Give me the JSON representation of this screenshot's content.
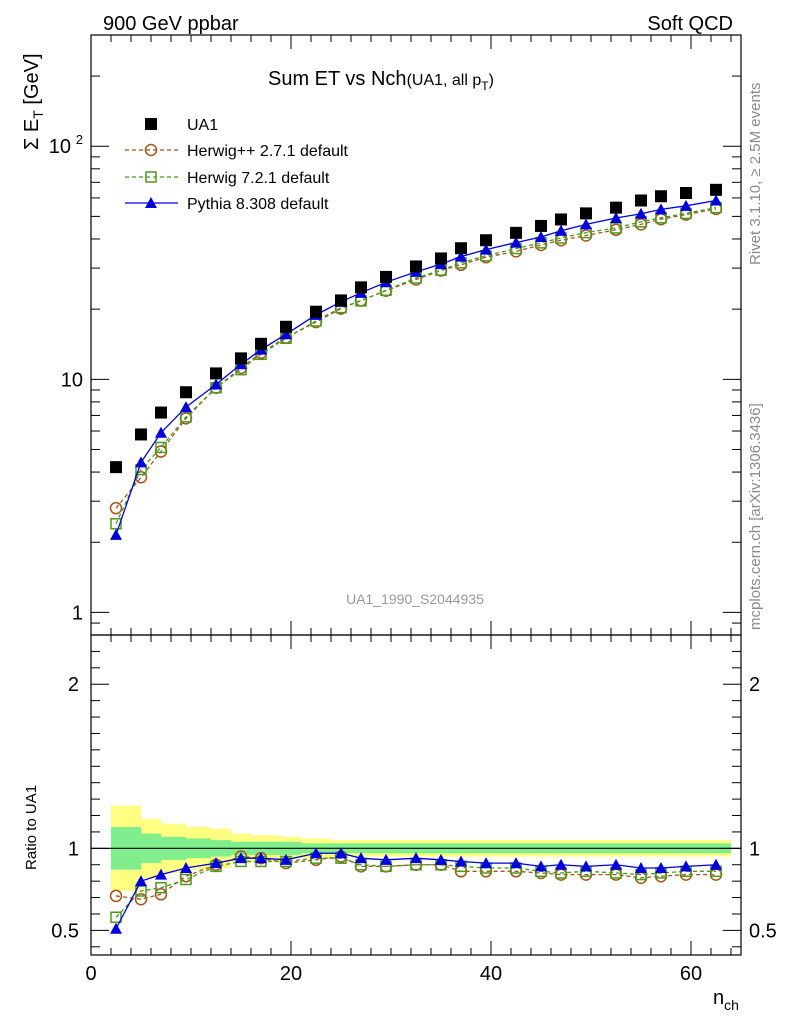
{
  "header": {
    "left": "900 GeV ppbar",
    "right": "Soft QCD"
  },
  "side_labels": {
    "rivet": "Rivet 3.1.10, ≥ 2.5M events",
    "mcplots": "mcplots.cern.ch [arXiv:1306.3436]"
  },
  "chart_data": {
    "type": "scatter",
    "title": "Sum ET vs Nch",
    "title_suffix": "(UA1, all p",
    "title_suffix_sub": "T",
    "title_suffix_end": ")",
    "watermark": "UA1_1990_S2044935",
    "ylabel_main": "Σ E",
    "ylabel_main_sub": "T",
    "ylabel_main_unit": " [GeV]",
    "ylabel_ratio": "Ratio to UA1",
    "xlabel": "n",
    "xlabel_sub": "ch",
    "main_yscale": "log",
    "main_ylim": [
      0.8,
      300
    ],
    "ratio_ylim": [
      0.35,
      2.3
    ],
    "xlim": [
      0,
      65
    ],
    "x_ticks": [
      "0",
      "20",
      "40",
      "60"
    ],
    "x_tick_values": [
      0,
      20,
      40,
      60
    ],
    "main_y_ticks": [
      {
        "value": 1,
        "label": "1"
      },
      {
        "value": 10,
        "label": "10"
      },
      {
        "value": 100,
        "label": "10",
        "sup": "2"
      }
    ],
    "ratio_y_ticks": [
      {
        "value": 0.5,
        "label": "0.5"
      },
      {
        "value": 1,
        "label": "1"
      },
      {
        "value": 2,
        "label": "2"
      }
    ],
    "legend_position": "top-left",
    "x": [
      2.5,
      5,
      7,
      9.5,
      12.5,
      15,
      17,
      19.5,
      22.5,
      25,
      27,
      29.5,
      32.5,
      35,
      37,
      39.5,
      42.5,
      45,
      47,
      49.5,
      52.5,
      55,
      57,
      59.5,
      62.5
    ],
    "series": [
      {
        "name": "UA1",
        "color": "#000000",
        "marker": "square-filled",
        "values": [
          4.2,
          5.8,
          7.2,
          8.8,
          10.6,
          12.3,
          14.2,
          16.8,
          19.5,
          21.8,
          24.8,
          27.5,
          30.5,
          33.0,
          36.5,
          39.5,
          42.5,
          45.5,
          48.5,
          51.5,
          54.5,
          58.5,
          61.0,
          63.0,
          65.0
        ],
        "ratio": [
          1,
          1,
          1,
          1,
          1,
          1,
          1,
          1,
          1,
          1,
          1,
          1,
          1,
          1,
          1,
          1,
          1,
          1,
          1,
          1,
          1,
          1,
          1,
          1,
          1
        ]
      },
      {
        "name": "Herwig++ 2.7.1 default",
        "color": "#a8541a",
        "marker": "circle-open",
        "values": [
          2.8,
          3.8,
          4.9,
          6.8,
          9.2,
          11.2,
          13.0,
          15.1,
          17.6,
          20.1,
          21.8,
          24.0,
          26.8,
          29.3,
          31.0,
          33.4,
          35.4,
          37.7,
          39.5,
          41.4,
          43.8,
          46.2,
          48.6,
          50.9,
          53.8
        ],
        "ratio": [
          0.71,
          0.69,
          0.72,
          0.83,
          0.9,
          0.95,
          0.94,
          0.91,
          0.93,
          0.95,
          0.89,
          0.89,
          0.9,
          0.9,
          0.86,
          0.86,
          0.86,
          0.85,
          0.84,
          0.84,
          0.84,
          0.82,
          0.83,
          0.84,
          0.84
        ]
      },
      {
        "name": "Herwig 7.2.1 default",
        "color": "#4b9a1e",
        "marker": "square-open",
        "values": [
          2.4,
          4.1,
          5.1,
          6.9,
          9.2,
          11.0,
          12.8,
          15.0,
          17.8,
          20.3,
          21.7,
          24.1,
          27.2,
          29.4,
          31.6,
          33.9,
          36.4,
          38.5,
          40.4,
          42.6,
          44.6,
          47.4,
          49.3,
          51.5,
          54.5
        ],
        "ratio": [
          0.58,
          0.74,
          0.76,
          0.81,
          0.89,
          0.92,
          0.92,
          0.92,
          0.94,
          0.94,
          0.9,
          0.89,
          0.9,
          0.9,
          0.89,
          0.88,
          0.88,
          0.86,
          0.85,
          0.86,
          0.85,
          0.84,
          0.85,
          0.86,
          0.86
        ]
      },
      {
        "name": "Pythia 8.308 default",
        "color": "#0000dd",
        "marker": "triangle-filled",
        "values": [
          2.15,
          4.4,
          5.9,
          7.6,
          9.5,
          11.6,
          13.4,
          15.6,
          18.9,
          21.5,
          23.5,
          26.1,
          28.9,
          31.2,
          33.6,
          36.0,
          38.6,
          40.8,
          43.4,
          46.2,
          49.2,
          51.3,
          53.6,
          55.5,
          58.5
        ],
        "ratio": [
          0.51,
          0.8,
          0.84,
          0.88,
          0.91,
          0.94,
          0.94,
          0.93,
          0.97,
          0.97,
          0.94,
          0.93,
          0.94,
          0.93,
          0.92,
          0.91,
          0.91,
          0.89,
          0.9,
          0.89,
          0.9,
          0.88,
          0.88,
          0.89,
          0.9
        ]
      }
    ],
    "uncertainty_bands": {
      "bin_edges": [
        2,
        5,
        7,
        9.5,
        12,
        14,
        16,
        19,
        21,
        24,
        26,
        29,
        31,
        34,
        36,
        39,
        41,
        44,
        46,
        49,
        51,
        54,
        56,
        59,
        61,
        64
      ],
      "inner_color": "#80ee8c",
      "outer_color": "#fefe80",
      "inner_low": [
        0.87,
        0.91,
        0.93,
        0.94,
        0.95,
        0.96,
        0.96,
        0.96,
        0.97,
        0.97,
        0.97,
        0.97,
        0.97,
        0.97,
        0.97,
        0.97,
        0.97,
        0.97,
        0.97,
        0.97,
        0.97,
        0.97,
        0.97,
        0.97,
        0.97
      ],
      "inner_high": [
        1.13,
        1.09,
        1.07,
        1.06,
        1.05,
        1.04,
        1.04,
        1.04,
        1.03,
        1.03,
        1.03,
        1.03,
        1.03,
        1.03,
        1.03,
        1.03,
        1.03,
        1.03,
        1.03,
        1.03,
        1.03,
        1.03,
        1.03,
        1.03,
        1.03
      ],
      "outer_low": [
        0.74,
        0.82,
        0.85,
        0.87,
        0.88,
        0.91,
        0.92,
        0.94,
        0.94,
        0.95,
        0.95,
        0.95,
        0.95,
        0.95,
        0.95,
        0.95,
        0.95,
        0.95,
        0.95,
        0.95,
        0.95,
        0.95,
        0.95,
        0.95,
        0.95
      ],
      "outer_high": [
        1.26,
        1.18,
        1.15,
        1.13,
        1.12,
        1.09,
        1.08,
        1.07,
        1.06,
        1.05,
        1.05,
        1.05,
        1.05,
        1.05,
        1.05,
        1.05,
        1.05,
        1.05,
        1.05,
        1.05,
        1.05,
        1.05,
        1.05,
        1.05,
        1.05
      ]
    }
  }
}
